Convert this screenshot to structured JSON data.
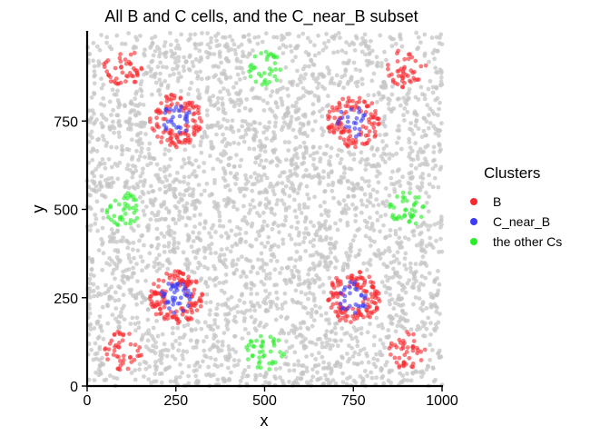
{
  "chart_data": {
    "type": "scatter",
    "title": "All B and C cells, and the C_near_B subset",
    "xlabel": "x",
    "ylabel": "y",
    "xlim": [
      0,
      1000
    ],
    "ylim": [
      0,
      1000
    ],
    "x_ticks": [
      0,
      250,
      500,
      750,
      1000
    ],
    "y_ticks": [
      0,
      250,
      500,
      750
    ],
    "grid": false,
    "legend": {
      "title": "Clusters",
      "placement": "right",
      "entries": [
        {
          "label": "B",
          "color": "#f8282d"
        },
        {
          "label": "C_near_B",
          "color": "#3c3cf5"
        },
        {
          "label": "the other Cs",
          "color": "#28ee28"
        }
      ]
    },
    "background_points": {
      "color": "#c6c6c6",
      "count": 3000,
      "description_of_range": [
        0,
        1000
      ]
    },
    "clusters": {
      "B_rings": [
        {
          "center": [
            250,
            750
          ],
          "r_inner": 30,
          "r_outer": 75,
          "n": 110
        },
        {
          "center": [
            750,
            750
          ],
          "r_inner": 30,
          "r_outer": 75,
          "n": 110
        },
        {
          "center": [
            250,
            250
          ],
          "r_inner": 30,
          "r_outer": 75,
          "n": 130
        },
        {
          "center": [
            750,
            250
          ],
          "r_inner": 30,
          "r_outer": 75,
          "n": 130
        }
      ],
      "B_small": [
        {
          "center": [
            100,
            900
          ],
          "radius": 55,
          "n": 45
        },
        {
          "center": [
            900,
            900
          ],
          "radius": 55,
          "n": 45
        },
        {
          "center": [
            100,
            100
          ],
          "radius": 55,
          "n": 45
        },
        {
          "center": [
            900,
            100
          ],
          "radius": 55,
          "n": 45
        }
      ],
      "C_near_B": [
        {
          "center": [
            250,
            750
          ],
          "radius": 45,
          "n": 30
        },
        {
          "center": [
            750,
            750
          ],
          "radius": 45,
          "n": 22
        },
        {
          "center": [
            250,
            250
          ],
          "radius": 45,
          "n": 40
        },
        {
          "center": [
            750,
            250
          ],
          "radius": 45,
          "n": 28
        }
      ],
      "other_Cs": [
        {
          "center": [
            500,
            900
          ],
          "radius": 50,
          "n": 35
        },
        {
          "center": [
            100,
            500
          ],
          "radius": 50,
          "n": 40
        },
        {
          "center": [
            900,
            500
          ],
          "radius": 50,
          "n": 40
        },
        {
          "center": [
            500,
            100
          ],
          "radius": 55,
          "n": 40
        }
      ]
    }
  }
}
